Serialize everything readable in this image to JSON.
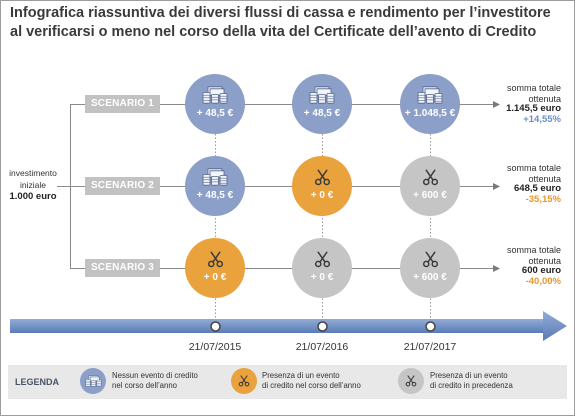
{
  "title": {
    "line1": "Infografica riassuntiva dei diversi flussi di cassa e rendimento per l’investitore",
    "line2": "al verificarsi o meno nel corso della vita del Certificate dell’avento di Credito"
  },
  "investment": {
    "line1": "investimento",
    "line2": "iniziale",
    "amount": "1.000 euro"
  },
  "colors": {
    "no_event": "#8b9fc8",
    "event": "#eaa23c",
    "prior_event": "#c5c5c5",
    "scenario_box": "#c2c2c2",
    "timeline": "#6f8ec4",
    "positive": "#6b8cc4",
    "negative": "#e8972a"
  },
  "dates": [
    "21/07/2015",
    "21/07/2016",
    "21/07/2017"
  ],
  "scenarios": [
    {
      "label": "SCENARIO 1",
      "flows": [
        {
          "kind": "no_event",
          "icon": "money-stack-icon",
          "value": "+ 48,5 €"
        },
        {
          "kind": "no_event",
          "icon": "money-stack-icon",
          "value": "+ 48,5 €"
        },
        {
          "kind": "no_event",
          "icon": "money-stack-icon",
          "value": "+ 1.048,5 €"
        }
      ],
      "total": {
        "line1": "somma totale",
        "line2": "ottenuta",
        "amount": "1.145,5 euro",
        "return": "+14,55%",
        "return_kind": "positive"
      }
    },
    {
      "label": "SCENARIO 2",
      "flows": [
        {
          "kind": "no_event",
          "icon": "money-stack-icon",
          "value": "+ 48,5 €"
        },
        {
          "kind": "event",
          "icon": "scissors-icon",
          "value": "+ 0 €"
        },
        {
          "kind": "prior_event",
          "icon": "scissors-icon",
          "value": "+ 600 €"
        }
      ],
      "total": {
        "line1": "somma totale",
        "line2": "ottenuta",
        "amount": "648,5 euro",
        "return": "-35,15%",
        "return_kind": "negative"
      }
    },
    {
      "label": "SCENARIO 3",
      "flows": [
        {
          "kind": "event",
          "icon": "scissors-icon",
          "value": "+ 0 €"
        },
        {
          "kind": "prior_event",
          "icon": "scissors-icon",
          "value": "+ 0 €"
        },
        {
          "kind": "prior_event",
          "icon": "scissors-icon",
          "value": "+ 600 €"
        }
      ],
      "total": {
        "line1": "somma totale",
        "line2": "ottenuta",
        "amount": "600 euro",
        "return": "-40,00%",
        "return_kind": "negative"
      }
    }
  ],
  "legend": {
    "title": "LEGENDA",
    "items": [
      {
        "kind": "no_event",
        "icon": "money-stack-icon",
        "line1": "Nessun evento di credito",
        "line2": "nel corso dell’anno"
      },
      {
        "kind": "event",
        "icon": "scissors-icon",
        "line1": "Presenza di un evento",
        "line2": "di credito nel corso dell’anno"
      },
      {
        "kind": "prior_event",
        "icon": "scissors-icon",
        "line1": "Presenza di un evento",
        "line2": "di credito in precedenza"
      }
    ]
  }
}
